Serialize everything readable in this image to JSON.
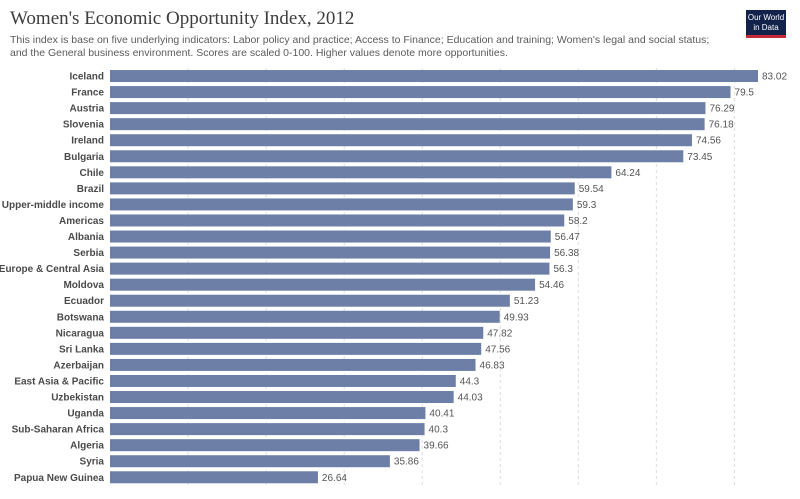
{
  "header": {
    "title": "Women's Economic Opportunity Index, 2012",
    "subtitle": "This index is base on five underlying indicators: Labor policy and practice; Access to Finance; Education and training; Women's legal and social status; and the General business environment. Scores are scaled 0-100. Higher values denote more opportunities.",
    "logo_line1": "Our World",
    "logo_line2": "in Data"
  },
  "chart_data": {
    "type": "bar",
    "orientation": "horizontal",
    "title": "Women's Economic Opportunity Index, 2012",
    "bar_color": "#6d7fa6",
    "categories": [
      "Iceland",
      "France",
      "Austria",
      "Slovenia",
      "Ireland",
      "Bulgaria",
      "Chile",
      "Brazil",
      "Upper-middle income",
      "Americas",
      "Albania",
      "Serbia",
      "Europe & Central Asia",
      "Moldova",
      "Ecuador",
      "Botswana",
      "Nicaragua",
      "Sri Lanka",
      "Azerbaijan",
      "East Asia & Pacific",
      "Uzbekistan",
      "Uganda",
      "Sub-Saharan Africa",
      "Algeria",
      "Syria",
      "Papua New Guinea"
    ],
    "values": [
      83.02,
      79.5,
      76.29,
      76.18,
      74.56,
      73.45,
      64.24,
      59.54,
      59.3,
      58.2,
      56.47,
      56.38,
      56.3,
      54.46,
      51.23,
      49.93,
      47.82,
      47.56,
      46.83,
      44.3,
      44.03,
      40.41,
      40.3,
      39.66,
      35.86,
      26.64
    ],
    "value_labels": [
      "83.02",
      "79.5",
      "76.29",
      "76.18",
      "74.56",
      "73.45",
      "64.24",
      "59.54",
      "59.3",
      "58.2",
      "56.47",
      "56.38",
      "56.3",
      "54.46",
      "51.23",
      "49.93",
      "47.82",
      "47.56",
      "46.83",
      "44.3",
      "44.03",
      "40.41",
      "40.3",
      "39.66",
      "35.86",
      "26.64"
    ],
    "xlim": [
      0,
      83.02
    ],
    "grid": true
  }
}
